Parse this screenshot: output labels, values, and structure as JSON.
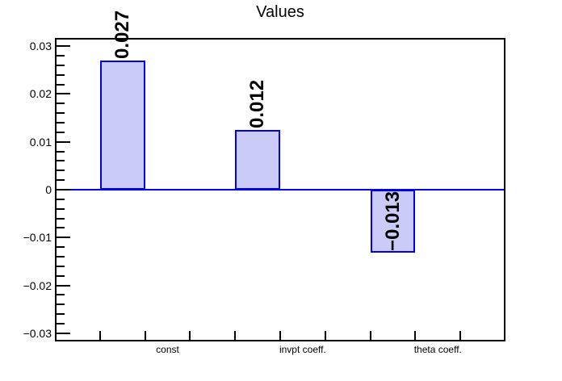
{
  "chart_data": {
    "type": "bar",
    "title": "Values",
    "xlabel": "",
    "ylabel": "",
    "categories": [
      "const",
      "invpt coeff.",
      "theta coeff."
    ],
    "values": [
      0.027,
      0.0125,
      -0.0132
    ],
    "value_labels": [
      "0.027",
      "0.012",
      "−0.013"
    ],
    "n_bins": 10,
    "bar_bins": [
      2,
      5,
      8
    ],
    "category_label_bins": [
      3,
      6,
      9
    ],
    "ylim": [
      -0.0317,
      0.0317
    ],
    "y_major_ticks": [
      {
        "value": 0.03,
        "label": "0.03"
      },
      {
        "value": 0.02,
        "label": "0.02"
      },
      {
        "value": 0.01,
        "label": "0.01"
      },
      {
        "value": 0,
        "label": "0"
      },
      {
        "value": -0.01,
        "label": "−0.01"
      },
      {
        "value": -0.02,
        "label": "−0.02"
      },
      {
        "value": -0.03,
        "label": "−0.03"
      }
    ],
    "y_minor_step": 0.002,
    "grid": false,
    "legend": false,
    "colors": {
      "bar_fill": "#cbcbf7",
      "bar_edge": "#0000f0",
      "zero_line": "#0000f0",
      "frame": "#000000",
      "text": "#000000",
      "background": "#ffffff"
    }
  }
}
